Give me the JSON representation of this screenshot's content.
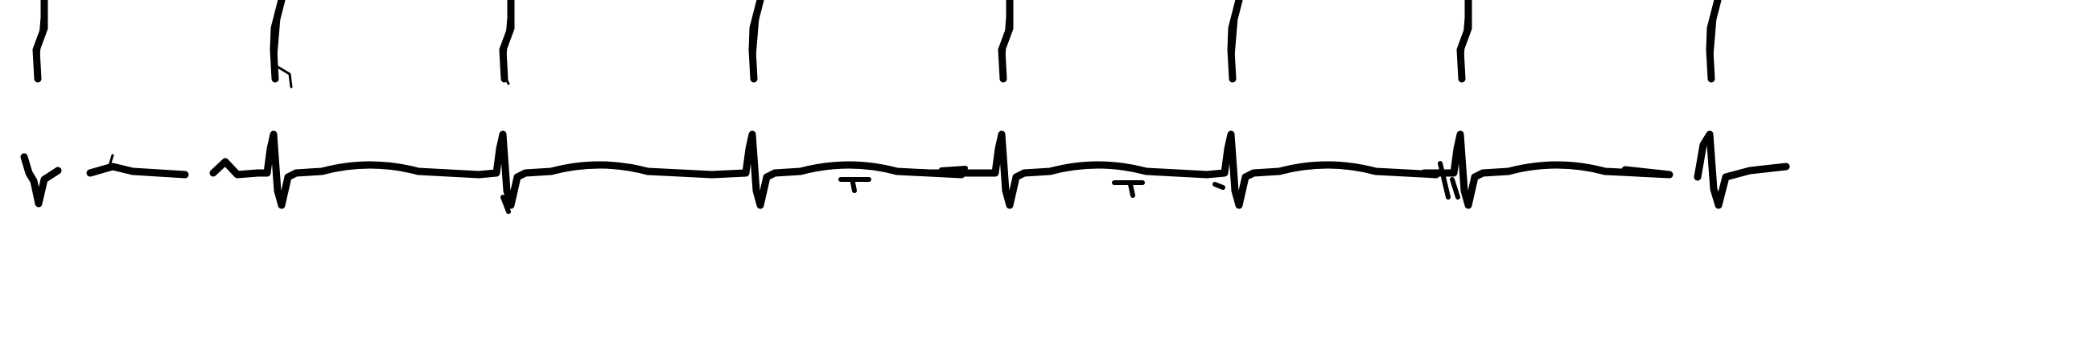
{
  "recording": {
    "lead_count": 2,
    "beat_count_upper": 8,
    "beat_count_lower": 8
  },
  "colors": {
    "background": "#ffffff",
    "trace": "#000000"
  }
}
